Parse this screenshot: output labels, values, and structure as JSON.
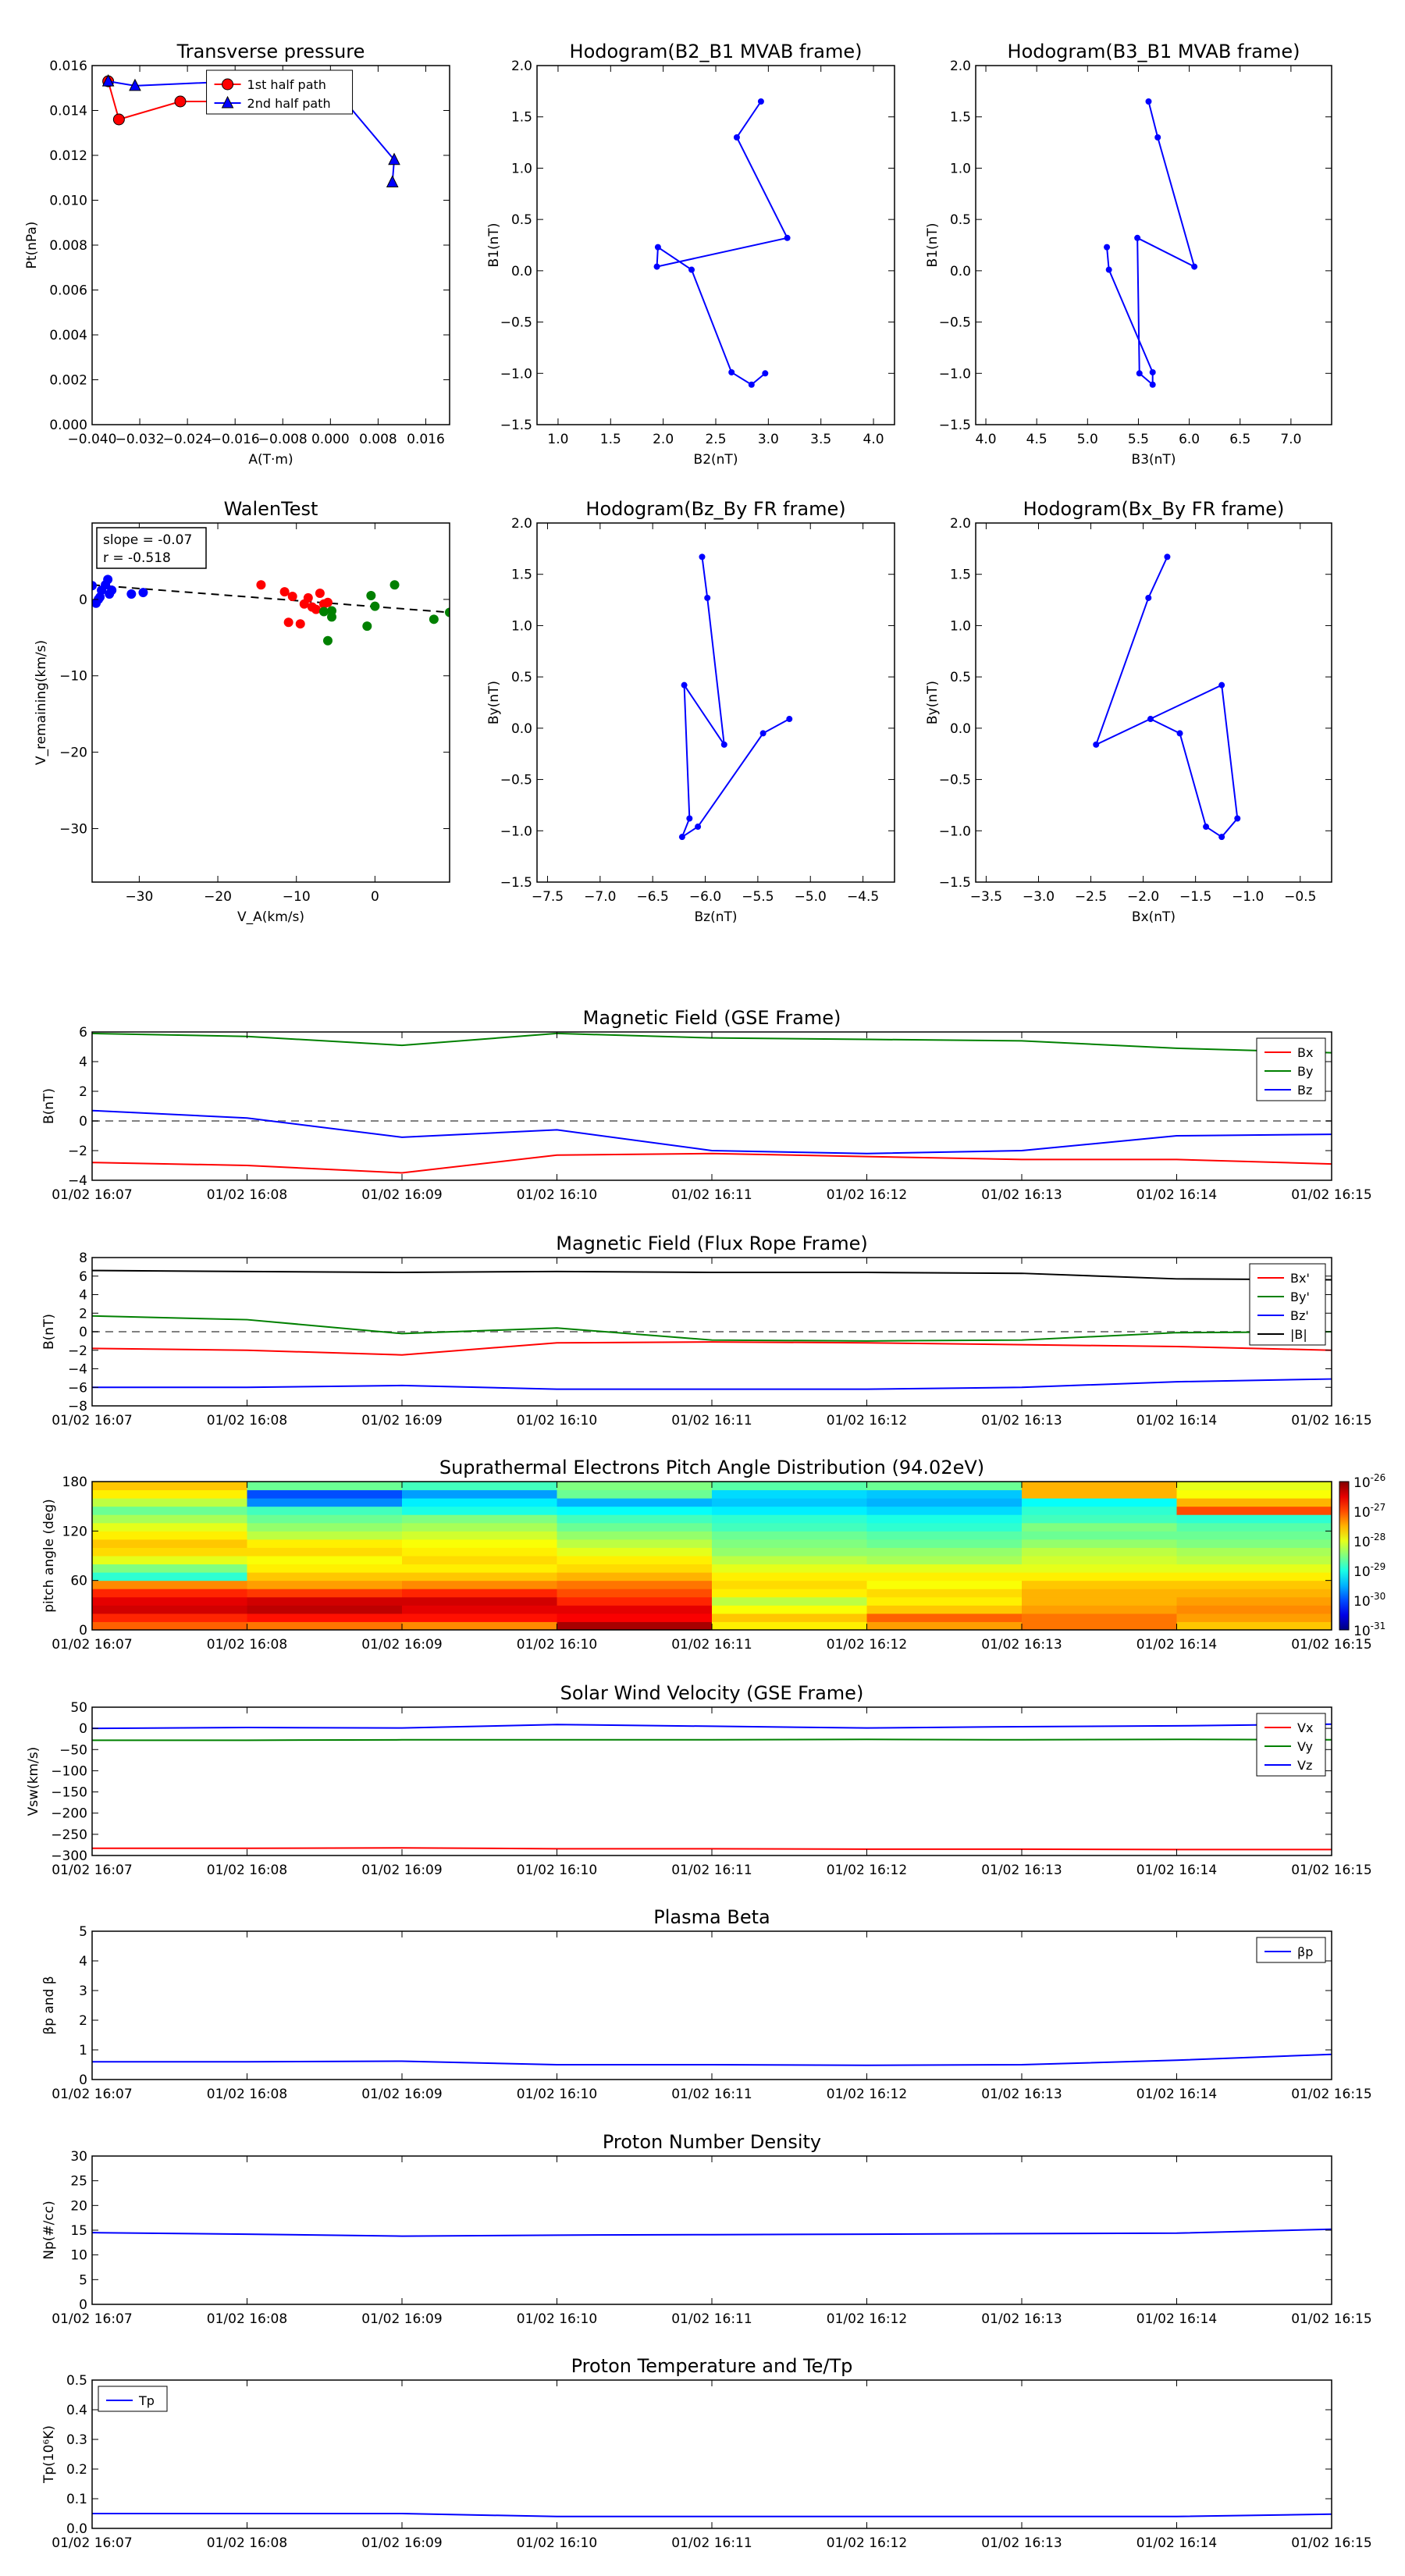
{
  "colors": {
    "red": "#ff0000",
    "green": "#008000",
    "blue": "#0000ff",
    "black": "#000000",
    "dash": "#808080"
  },
  "time_ticks": [
    "01/02 16:07",
    "01/02 16:08",
    "01/02 16:09",
    "01/02 16:10",
    "01/02 16:11",
    "01/02 16:12",
    "01/02 16:13",
    "01/02 16:14",
    "01/02 16:15"
  ],
  "chart_data": [
    {
      "id": "pt",
      "type": "line",
      "title": "Transverse pressure",
      "xlabel": "A(T·m)",
      "ylabel": "Pt(nPa)",
      "xlim": [
        -0.04,
        0.02
      ],
      "ylim": [
        0,
        0.016
      ],
      "xticks": [
        -0.04,
        -0.032,
        -0.024,
        -0.016,
        -0.008,
        0.0,
        0.008,
        0.016
      ],
      "xtick_labels": [
        "−0.040",
        "−0.032",
        "−0.024",
        "−0.016",
        "−0.008",
        "0.000",
        "0.008",
        "0.016"
      ],
      "yticks": [
        0,
        0.002,
        0.004,
        0.006,
        0.008,
        0.01,
        0.012,
        0.014,
        0.016
      ],
      "ytick_labels": [
        "0.000",
        "0.002",
        "0.004",
        "0.006",
        "0.008",
        "0.010",
        "0.012",
        "0.014",
        "0.016"
      ],
      "legend": "top-center",
      "series": [
        {
          "name": "1st half path",
          "color": "red",
          "marker": "circle",
          "x": [
            -0.0373,
            -0.0355,
            -0.0252,
            -0.0169,
            0.001,
            0.0009
          ],
          "y": [
            0.0153,
            0.0136,
            0.0144,
            0.0144,
            0.0146,
            0.0147
          ]
        },
        {
          "name": "2nd half path",
          "color": "blue",
          "marker": "triangle",
          "x": [
            -0.0373,
            -0.0328,
            -0.0155,
            0.0015,
            0.0107,
            0.0104
          ],
          "y": [
            0.0153,
            0.0151,
            0.0153,
            0.0147,
            0.0118,
            0.0108
          ]
        }
      ]
    },
    {
      "id": "hodo1",
      "type": "line",
      "title": "Hodogram(B2_B1 MVAB frame)",
      "xlabel": "B2(nT)",
      "ylabel": "B1(nT)",
      "xlim": [
        0.8,
        4.2
      ],
      "ylim": [
        -1.5,
        2.0
      ],
      "xticks": [
        1.0,
        1.5,
        2.0,
        2.5,
        3.0,
        3.5,
        4.0
      ],
      "xtick_labels": [
        "1.0",
        "1.5",
        "2.0",
        "2.5",
        "3.0",
        "3.5",
        "4.0"
      ],
      "yticks": [
        -1.5,
        -1.0,
        -0.5,
        0.0,
        0.5,
        1.0,
        1.5,
        2.0
      ],
      "ytick_labels": [
        "−1.5",
        "−1.0",
        "−0.5",
        "0.0",
        "0.5",
        "1.0",
        "1.5",
        "2.0"
      ],
      "series": [
        {
          "color": "blue",
          "x": [
            2.93,
            2.7,
            3.18,
            1.94,
            1.95,
            2.27,
            2.65,
            2.84,
            2.97
          ],
          "y": [
            1.65,
            1.3,
            0.32,
            0.04,
            0.23,
            0.01,
            -0.99,
            -1.11,
            -1.0
          ]
        }
      ]
    },
    {
      "id": "hodo2",
      "type": "line",
      "title": "Hodogram(B3_B1 MVAB frame)",
      "xlabel": "B3(nT)",
      "ylabel": "B1(nT)",
      "xlim": [
        3.9,
        7.4
      ],
      "ylim": [
        -1.5,
        2.0
      ],
      "xticks": [
        4.0,
        4.5,
        5.0,
        5.5,
        6.0,
        6.5,
        7.0
      ],
      "xtick_labels": [
        "4.0",
        "4.5",
        "5.0",
        "5.5",
        "6.0",
        "6.5",
        "7.0"
      ],
      "yticks": [
        -1.5,
        -1.0,
        -0.5,
        0.0,
        0.5,
        1.0,
        1.5,
        2.0
      ],
      "ytick_labels": [
        "−1.5",
        "−1.0",
        "−0.5",
        "0.0",
        "0.5",
        "1.0",
        "1.5",
        "2.0"
      ],
      "series": [
        {
          "color": "blue",
          "x": [
            5.6,
            5.69,
            6.05,
            5.49,
            5.51,
            5.64,
            5.64,
            5.21,
            5.19
          ],
          "y": [
            1.65,
            1.3,
            0.04,
            0.32,
            -1.0,
            -1.11,
            -0.99,
            0.01,
            0.23
          ]
        }
      ]
    },
    {
      "id": "walen",
      "type": "scatter",
      "title": "WalenTest",
      "xlabel": "V_A(km/s)",
      "ylabel": "V_remaining(km/s)",
      "xlim": [
        -36,
        9.5
      ],
      "ylim": [
        -37,
        10
      ],
      "xticks": [
        -30,
        -20,
        -10,
        0
      ],
      "xtick_labels": [
        "−30",
        "−20",
        "−10",
        "0"
      ],
      "yticks": [
        -30,
        -20,
        -10,
        0
      ],
      "ytick_labels": [
        "−30",
        "−20",
        "−10",
        "0"
      ],
      "annotation": [
        "slope = -0.07",
        "r = -0.518"
      ],
      "fit_line": {
        "x": [
          -36,
          9.5
        ],
        "y": [
          1.9,
          -1.7
        ]
      },
      "series": [
        {
          "color": "blue",
          "x": [
            -36,
            -35.5,
            -35,
            -34.8,
            -34.3,
            -34,
            -33.5,
            -33.8,
            -35.2,
            -31,
            -29.5
          ],
          "y": [
            1.8,
            -0.5,
            0.3,
            1.2,
            1.9,
            2.6,
            1.2,
            0.7,
            0.0,
            0.7,
            0.9
          ]
        },
        {
          "color": "red",
          "x": [
            -14.5,
            -11.5,
            -10.5,
            -9,
            -8,
            -7.5,
            -6.5,
            -6,
            -8.5,
            -11,
            -9.5,
            -7
          ],
          "y": [
            1.9,
            1.0,
            0.4,
            -0.6,
            -1.0,
            -1.3,
            -0.6,
            -0.4,
            0.2,
            -3.0,
            -3.2,
            0.8
          ]
        },
        {
          "color": "green",
          "x": [
            -6,
            -5.5,
            -5.5,
            -1,
            -0.5,
            0,
            2.5,
            7.5,
            9.5,
            -6.5
          ],
          "y": [
            -5.4,
            -2.3,
            -1.5,
            -3.5,
            0.5,
            -0.9,
            1.9,
            -2.6,
            -1.7,
            -1.6
          ]
        }
      ]
    },
    {
      "id": "hodo3",
      "type": "line",
      "title": "Hodogram(Bz_By FR frame)",
      "xlabel": "Bz(nT)",
      "ylabel": "By(nT)",
      "xlim": [
        -7.6,
        -4.2
      ],
      "ylim": [
        -1.5,
        2.0
      ],
      "xticks": [
        -7.5,
        -7.0,
        -6.5,
        -6.0,
        -5.5,
        -5.0,
        -4.5
      ],
      "xtick_labels": [
        "−7.5",
        "−7.0",
        "−6.5",
        "−6.0",
        "−5.5",
        "−5.0",
        "−4.5"
      ],
      "yticks": [
        -1.5,
        -1.0,
        -0.5,
        0.0,
        0.5,
        1.0,
        1.5,
        2.0
      ],
      "ytick_labels": [
        "−1.5",
        "−1.0",
        "−0.5",
        "0.0",
        "0.5",
        "1.0",
        "1.5",
        "2.0"
      ],
      "series": [
        {
          "color": "blue",
          "x": [
            -6.03,
            -5.98,
            -5.82,
            -6.2,
            -6.15,
            -6.22,
            -6.07,
            -5.45,
            -5.2
          ],
          "y": [
            1.67,
            1.27,
            -0.16,
            0.42,
            -0.88,
            -1.06,
            -0.96,
            -0.05,
            0.09
          ]
        }
      ]
    },
    {
      "id": "hodo4",
      "type": "line",
      "title": "Hodogram(Bx_By FR frame)",
      "xlabel": "Bx(nT)",
      "ylabel": "By(nT)",
      "xlim": [
        -3.6,
        -0.2
      ],
      "ylim": [
        -1.5,
        2.0
      ],
      "xticks": [
        -3.5,
        -3.0,
        -2.5,
        -2.0,
        -1.5,
        -1.0,
        -0.5
      ],
      "xtick_labels": [
        "−3.5",
        "−3.0",
        "−2.5",
        "−2.0",
        "−1.5",
        "−1.0",
        "−0.5"
      ],
      "yticks": [
        -1.5,
        -1.0,
        -0.5,
        0.0,
        0.5,
        1.0,
        1.5,
        2.0
      ],
      "ytick_labels": [
        "−1.5",
        "−1.0",
        "−0.5",
        "0.0",
        "0.5",
        "1.0",
        "1.5",
        "2.0"
      ],
      "series": [
        {
          "color": "blue",
          "x": [
            -1.77,
            -1.95,
            -2.45,
            -1.25,
            -1.1,
            -1.25,
            -1.4,
            -1.65,
            -1.93
          ],
          "y": [
            1.67,
            1.27,
            -0.16,
            0.42,
            -0.88,
            -1.06,
            -0.96,
            -0.05,
            0.09
          ]
        }
      ]
    },
    {
      "id": "bgse",
      "type": "line",
      "title": "Magnetic Field (GSE Frame)",
      "ylabel": "B(nT)",
      "ylim": [
        -4,
        6
      ],
      "yticks": [
        -4,
        -2,
        0,
        2,
        4,
        6
      ],
      "ytick_labels": [
        "−4",
        "−2",
        "0",
        "2",
        "4",
        "6"
      ],
      "zero_line": true,
      "legend": "top-right",
      "series": [
        {
          "name": "Bx",
          "color": "red",
          "values": [
            -2.8,
            -3.0,
            -3.5,
            -2.3,
            -2.2,
            -2.4,
            -2.6,
            -2.6,
            -2.9
          ]
        },
        {
          "name": "By",
          "color": "green",
          "values": [
            5.9,
            5.7,
            5.1,
            5.9,
            5.6,
            5.5,
            5.4,
            4.9,
            4.6
          ]
        },
        {
          "name": "Bz",
          "color": "blue",
          "values": [
            0.7,
            0.2,
            -1.1,
            -0.6,
            -2.0,
            -2.2,
            -2.0,
            -1.0,
            -0.9
          ]
        }
      ]
    },
    {
      "id": "bfr",
      "type": "line",
      "title": "Magnetic Field (Flux Rope Frame)",
      "ylabel": "B(nT)",
      "ylim": [
        -8,
        8
      ],
      "yticks": [
        -8,
        -6,
        -4,
        -2,
        0,
        2,
        4,
        6,
        8
      ],
      "ytick_labels": [
        "−8",
        "−6",
        "−4",
        "−2",
        "0",
        "2",
        "4",
        "6",
        "8"
      ],
      "zero_line": true,
      "legend": "top-right",
      "series": [
        {
          "name": "Bx'",
          "color": "red",
          "values": [
            -1.8,
            -2.0,
            -2.5,
            -1.2,
            -1.1,
            -1.2,
            -1.4,
            -1.6,
            -2.0
          ]
        },
        {
          "name": "By'",
          "color": "green",
          "values": [
            1.7,
            1.3,
            -0.2,
            0.4,
            -0.9,
            -1.0,
            -0.9,
            -0.1,
            0.0
          ]
        },
        {
          "name": "Bz'",
          "color": "blue",
          "values": [
            -6.0,
            -6.0,
            -5.8,
            -6.2,
            -6.2,
            -6.2,
            -6.0,
            -5.4,
            -5.1
          ]
        },
        {
          "name": "|B|",
          "color": "black",
          "values": [
            6.6,
            6.5,
            6.4,
            6.5,
            6.4,
            6.4,
            6.3,
            5.7,
            5.6
          ]
        }
      ]
    },
    {
      "id": "pad",
      "type": "heatmap",
      "title": "Suprathermal Electrons Pitch Angle Distribution (94.02eV)",
      "ylabel": "pitch angle (deg)",
      "ylim": [
        0,
        180
      ],
      "yticks": [
        0,
        60,
        120,
        180
      ],
      "ytick_labels": [
        "0",
        "60",
        "120",
        "180"
      ],
      "colorbar_ticks": [
        "10",
        "10",
        "10",
        "10",
        "10",
        "10"
      ],
      "colorbar_exponents": [
        "-26",
        "-27",
        "-28",
        "-29",
        "-30",
        "-31"
      ],
      "colorbar_range_log": [
        -31,
        -26
      ],
      "bins": 18,
      "values_log": [
        [
          -27.1,
          -26.8,
          -26.4,
          -26.5,
          -26.8,
          -27.3,
          -28.9,
          -28.5,
          -28.0,
          -27.7,
          -27.6,
          -27.8,
          -28.0,
          -28.3,
          -28.6,
          -28.2,
          -27.8,
          -27.6
        ],
        [
          -27.2,
          -26.7,
          -26.3,
          -26.4,
          -26.9,
          -27.4,
          -27.6,
          -27.8,
          -27.9,
          -27.7,
          -27.8,
          -28.2,
          -28.4,
          -28.6,
          -28.8,
          -29.7,
          -30.0,
          -28.6
        ],
        [
          -27.3,
          -26.7,
          -26.5,
          -26.4,
          -26.8,
          -27.3,
          -27.6,
          -27.8,
          -27.7,
          -27.8,
          -27.9,
          -28.1,
          -28.3,
          -28.5,
          -29.0,
          -29.2,
          -29.6,
          -28.8
        ],
        [
          -26.2,
          -26.6,
          -26.5,
          -26.8,
          -27.0,
          -27.2,
          -27.5,
          -27.7,
          -27.8,
          -28.0,
          -28.2,
          -28.4,
          -28.6,
          -28.8,
          -29.1,
          -29.5,
          -28.6,
          -28.5
        ],
        [
          -27.8,
          -27.6,
          -27.9,
          -28.2,
          -27.8,
          -27.7,
          -27.8,
          -28.0,
          -28.2,
          -28.4,
          -28.5,
          -28.6,
          -28.8,
          -28.9,
          -29.2,
          -29.4,
          -29.3,
          -28.7
        ],
        [
          -27.4,
          -27.1,
          -27.6,
          -27.8,
          -27.7,
          -27.9,
          -27.8,
          -28.0,
          -28.3,
          -28.4,
          -28.6,
          -28.7,
          -28.9,
          -29.0,
          -29.3,
          -29.5,
          -29.4,
          -28.6
        ],
        [
          -27.2,
          -27.2,
          -27.4,
          -27.5,
          -27.5,
          -27.6,
          -27.8,
          -28.0,
          -28.1,
          -28.2,
          -28.4,
          -28.6,
          -28.5,
          -28.8,
          -28.9,
          -29.1,
          -27.5,
          -27.5
        ],
        [
          -27.6,
          -27.4,
          -27.3,
          -27.4,
          -27.5,
          -27.6,
          -27.8,
          -28.0,
          -28.2,
          -28.3,
          -28.5,
          -28.6,
          -28.7,
          -28.9,
          -27.0,
          -27.5,
          -27.9,
          -28.0
        ],
        [
          -27.4,
          -27.3,
          -27.2,
          -27.3,
          -27.5,
          -27.6,
          -27.8,
          -28.0,
          -28.1,
          -28.3,
          -28.4,
          -28.5,
          -28.6,
          -28.8,
          -28.7,
          -28.9,
          -29.0,
          -28.5
        ]
      ]
    },
    {
      "id": "vsw",
      "type": "line",
      "title": "Solar Wind Velocity (GSE Frame)",
      "ylabel": "Vsw(km/s)",
      "ylim": [
        -300,
        50
      ],
      "yticks": [
        -300,
        -250,
        -200,
        -150,
        -100,
        -50,
        0,
        50
      ],
      "ytick_labels": [
        "−300",
        "−250",
        "−200",
        "−150",
        "−100",
        "−50",
        "0",
        "50"
      ],
      "legend": "top-right",
      "series": [
        {
          "name": "Vx",
          "color": "red",
          "values": [
            -283,
            -283,
            -282,
            -284,
            -284,
            -285,
            -285,
            -286,
            -286
          ]
        },
        {
          "name": "Vy",
          "color": "green",
          "values": [
            -28,
            -28,
            -27,
            -27,
            -27,
            -26,
            -27,
            -26,
            -27
          ]
        },
        {
          "name": "Vz",
          "color": "blue",
          "values": [
            0,
            2,
            1,
            9,
            5,
            1,
            4,
            6,
            10
          ]
        }
      ]
    },
    {
      "id": "beta",
      "type": "line",
      "title": "Plasma Beta",
      "ylabel": "βp and β",
      "ylim": [
        0,
        5
      ],
      "yticks": [
        0,
        1,
        2,
        3,
        4,
        5
      ],
      "ytick_labels": [
        "0",
        "1",
        "2",
        "3",
        "4",
        "5"
      ],
      "legend": "top-right",
      "series": [
        {
          "name": "βp",
          "color": "blue",
          "values": [
            0.6,
            0.6,
            0.62,
            0.5,
            0.5,
            0.48,
            0.5,
            0.65,
            0.85
          ]
        }
      ]
    },
    {
      "id": "np",
      "type": "line",
      "title": "Proton Number Density",
      "ylabel": "Np(#/cc)",
      "ylim": [
        0,
        30
      ],
      "yticks": [
        0,
        5,
        10,
        15,
        20,
        25,
        30
      ],
      "ytick_labels": [
        "0",
        "5",
        "10",
        "15",
        "20",
        "25",
        "30"
      ],
      "series": [
        {
          "name": "Np",
          "color": "blue",
          "values": [
            14.5,
            14.2,
            13.8,
            14.0,
            14.1,
            14.2,
            14.3,
            14.4,
            15.2
          ]
        }
      ]
    },
    {
      "id": "tp",
      "type": "line",
      "title": "Proton Temperature and Te/Tp",
      "ylabel": "Tp(10⁶K)",
      "ylim": [
        0,
        0.5
      ],
      "yticks": [
        0,
        0.1,
        0.2,
        0.3,
        0.4,
        0.5
      ],
      "ytick_labels": [
        "0.0",
        "0.1",
        "0.2",
        "0.3",
        "0.4",
        "0.5"
      ],
      "legend": "top-left",
      "series": [
        {
          "name": "Tp",
          "color": "blue",
          "values": [
            0.05,
            0.05,
            0.05,
            0.04,
            0.04,
            0.04,
            0.04,
            0.04,
            0.048
          ]
        }
      ]
    }
  ]
}
